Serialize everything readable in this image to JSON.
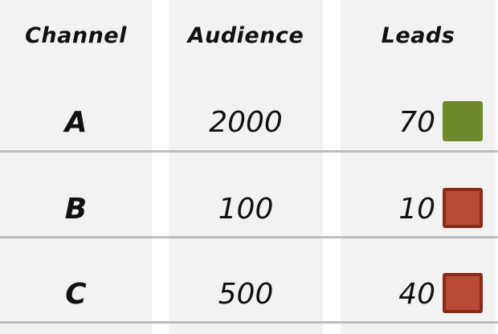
{
  "table": {
    "headers": [
      "Channel",
      "Audience",
      "Leads"
    ],
    "rows": [
      {
        "channel": "A",
        "audience": "2000",
        "leads": "70",
        "status_color": "#6e8b2c",
        "status_border": "#6e8b2c"
      },
      {
        "channel": "B",
        "audience": "100",
        "leads": "10",
        "status_color": "#b84a35",
        "status_border": "#8a2a17"
      },
      {
        "channel": "C",
        "audience": "500",
        "leads": "40",
        "status_color": "#b84a35",
        "status_border": "#8a2a17"
      }
    ]
  }
}
